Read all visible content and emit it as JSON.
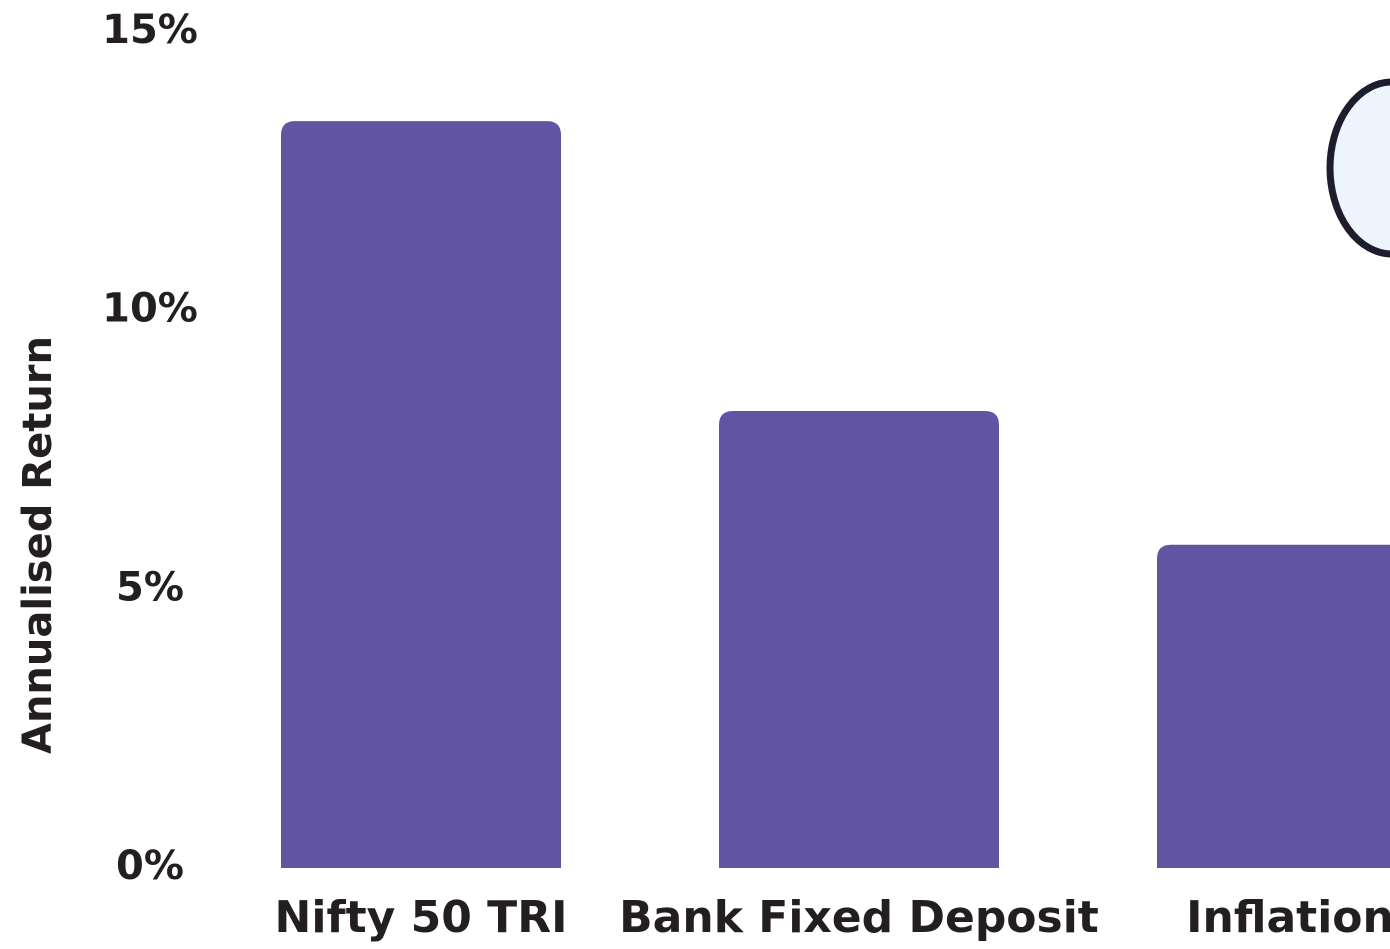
{
  "chart_data": {
    "type": "bar",
    "y_axis_label": "Annualised Return",
    "categories": [
      "Nifty 50 TRI",
      "Bank Fixed Deposit",
      "Inflation"
    ],
    "values": [
      13.4,
      8.2,
      5.8
    ],
    "color": "#6155a3",
    "ylim": [
      0,
      15
    ],
    "yticks": [
      {
        "value": 0,
        "label": "0%"
      },
      {
        "value": 5,
        "label": "5%"
      },
      {
        "value": 10,
        "label": "10%"
      },
      {
        "value": 15,
        "label": "15%"
      }
    ],
    "grid": false
  }
}
